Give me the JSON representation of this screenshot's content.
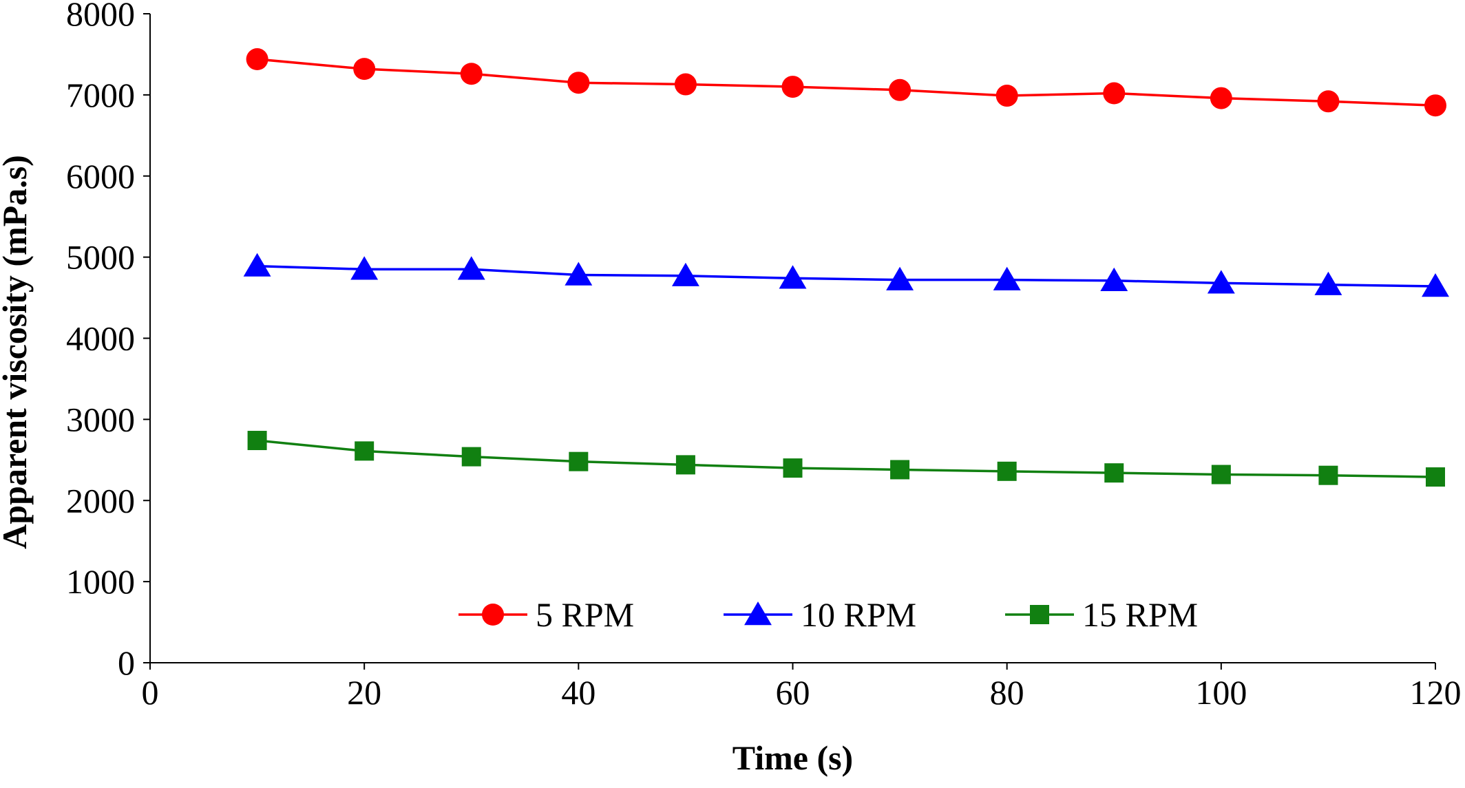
{
  "chart_data": {
    "type": "line",
    "title": "",
    "xlabel": "Time (s)",
    "ylabel": "Apparent viscosity (mPa.s)",
    "xlim": [
      0,
      120
    ],
    "ylim": [
      0,
      8000
    ],
    "xticks": [
      "0",
      "20",
      "40",
      "60",
      "80",
      "100",
      "120"
    ],
    "yticks": [
      "0",
      "1000",
      "2000",
      "3000",
      "4000",
      "5000",
      "6000",
      "7000",
      "8000"
    ],
    "grid": false,
    "legend_position": "bottom-center",
    "x": [
      10,
      20,
      30,
      40,
      50,
      60,
      70,
      80,
      90,
      100,
      110,
      120
    ],
    "series": [
      {
        "name": "5 RPM",
        "color": "#ff0000",
        "marker": "circle",
        "values": [
          7440,
          7320,
          7260,
          7150,
          7130,
          7100,
          7060,
          6990,
          7020,
          6960,
          6920,
          6870
        ]
      },
      {
        "name": "10 RPM",
        "color": "#0000ff",
        "marker": "triangle",
        "values": [
          4890,
          4850,
          4850,
          4780,
          4770,
          4740,
          4720,
          4720,
          4710,
          4680,
          4660,
          4640
        ]
      },
      {
        "name": "15 RPM",
        "color": "#118011",
        "marker": "square",
        "values": [
          2740,
          2610,
          2540,
          2480,
          2440,
          2400,
          2380,
          2360,
          2340,
          2320,
          2310,
          2290
        ]
      }
    ]
  }
}
